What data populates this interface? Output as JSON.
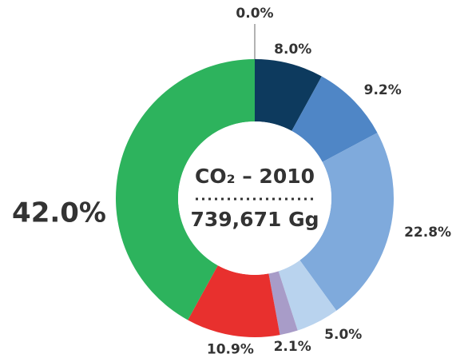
{
  "chart_data": {
    "type": "pie",
    "center_title": "CO₂ – 2010",
    "center_subtitle": "739,671 Gg",
    "values": [
      0.0,
      8.0,
      9.2,
      22.8,
      5.0,
      2.1,
      10.9,
      42.0
    ],
    "value_labels": [
      "0.0%",
      "8.0%",
      "9.2%",
      "22.8%",
      "5.0%",
      "2.1%",
      "10.9%",
      "42.0%"
    ],
    "colors": [
      "#999999",
      "#0d3a5e",
      "#4f86c6",
      "#7faadc",
      "#b9d3ee",
      "#a89cc8",
      "#e8302e",
      "#2db35d"
    ]
  }
}
